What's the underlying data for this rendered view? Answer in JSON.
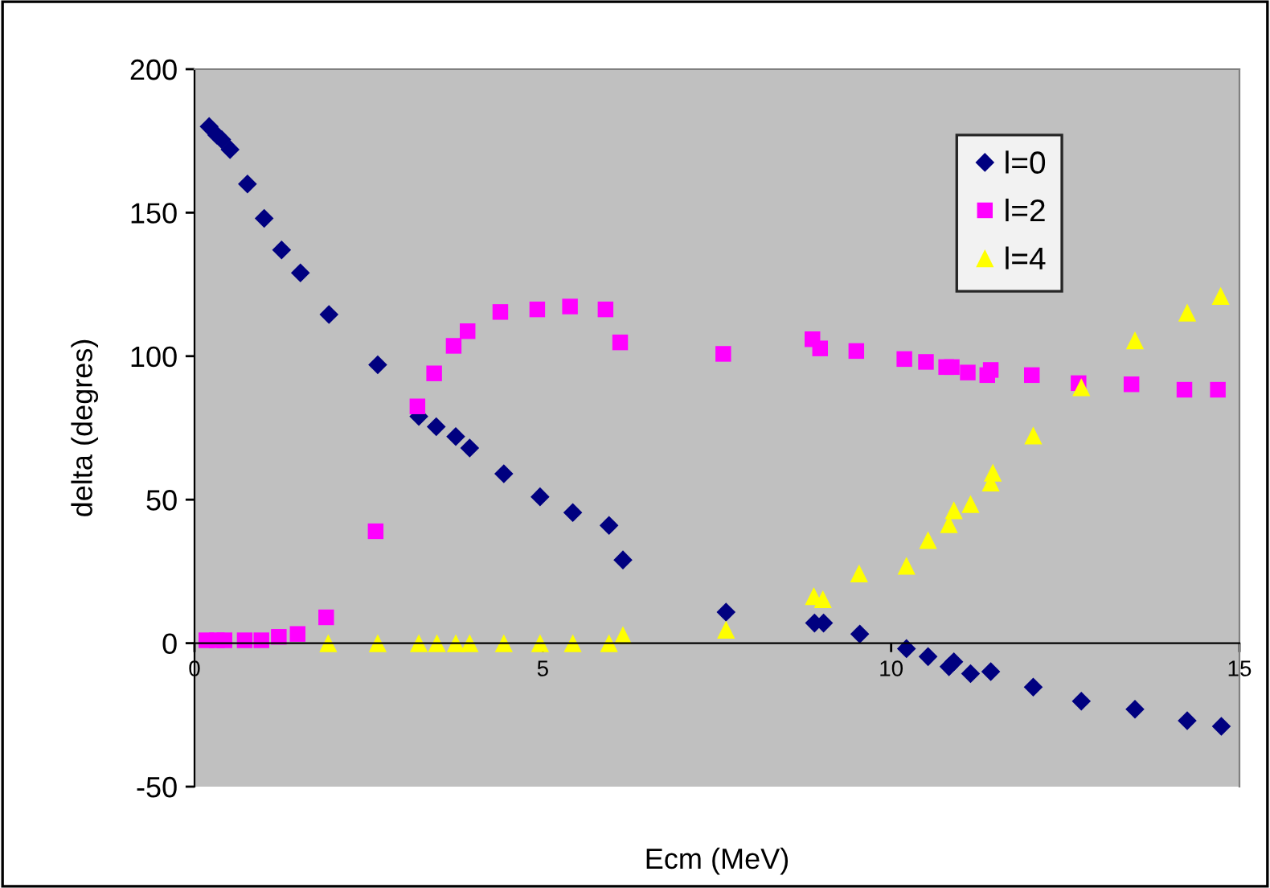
{
  "chart_data": {
    "type": "scatter",
    "xlabel": "Ecm (MeV)",
    "ylabel": "delta (degres)",
    "xlim": [
      0,
      15
    ],
    "xticks": [
      0,
      5,
      10,
      15
    ],
    "ylim": [
      -50,
      200
    ],
    "yticks": [
      -50,
      0,
      50,
      100,
      150,
      200
    ],
    "grid": false,
    "legend": "top right",
    "series": [
      {
        "name": "l=0",
        "color": "#000080",
        "marker": "diamond",
        "x": [
          0.21,
          0.32,
          0.39,
          0.51,
          0.76,
          1.0,
          1.25,
          1.52,
          1.93,
          2.63,
          3.22,
          3.47,
          3.75,
          3.95,
          4.44,
          4.96,
          5.43,
          5.95,
          6.15,
          7.63,
          8.9,
          9.03,
          9.55,
          10.22,
          10.53,
          10.83,
          10.9,
          11.14,
          11.43,
          12.04,
          12.73,
          13.5,
          14.25,
          14.74
        ],
        "values": [
          180,
          177,
          175.5,
          172,
          160,
          148,
          137,
          129,
          114.5,
          97,
          79,
          75.4,
          72,
          68,
          59,
          51,
          45.5,
          41,
          29,
          10.8,
          7,
          7,
          3.2,
          -1.9,
          -4.7,
          -8.2,
          -6.5,
          -10.6,
          -9.9,
          -15.3,
          -20.2,
          -23,
          -27,
          -29
        ]
      },
      {
        "name": "l=2",
        "color": "#ff00ff",
        "marker": "square",
        "x": [
          0.17,
          0.32,
          0.43,
          0.72,
          0.96,
          1.21,
          1.48,
          1.89,
          2.6,
          3.2,
          3.44,
          3.72,
          3.92,
          4.39,
          4.92,
          5.39,
          5.9,
          6.11,
          7.59,
          8.87,
          8.98,
          9.5,
          10.19,
          10.5,
          10.79,
          10.87,
          11.1,
          11.38,
          11.43,
          12.02,
          12.69,
          13.45,
          14.21,
          14.69
        ],
        "values": [
          1,
          1,
          1,
          1,
          1,
          2.2,
          3.2,
          9,
          39,
          82.5,
          94,
          103.6,
          108.7,
          115.4,
          116.3,
          117.3,
          116.3,
          104.8,
          100.8,
          105.9,
          102.7,
          101.8,
          99,
          98,
          96.2,
          96.2,
          94.3,
          93.4,
          95.2,
          93.4,
          90.6,
          90.2,
          88.3,
          88.3
        ]
      },
      {
        "name": "l=4",
        "color": "#ffff00",
        "marker": "triangle",
        "x": [
          1.92,
          2.63,
          3.22,
          3.48,
          3.75,
          3.95,
          4.44,
          4.96,
          5.43,
          5.95,
          6.15,
          7.63,
          8.89,
          9.02,
          9.54,
          10.22,
          10.53,
          10.83,
          10.9,
          11.14,
          11.43,
          11.46,
          12.04,
          12.73,
          13.5,
          14.25,
          14.73
        ],
        "values": [
          0,
          0,
          0,
          0,
          0,
          0,
          0,
          0,
          0,
          0,
          2.8,
          4.7,
          16.4,
          15.3,
          24.3,
          27,
          35.9,
          41.5,
          46.3,
          48.5,
          56,
          59.4,
          72.4,
          89.2,
          105.5,
          115.2,
          121
        ]
      }
    ]
  }
}
